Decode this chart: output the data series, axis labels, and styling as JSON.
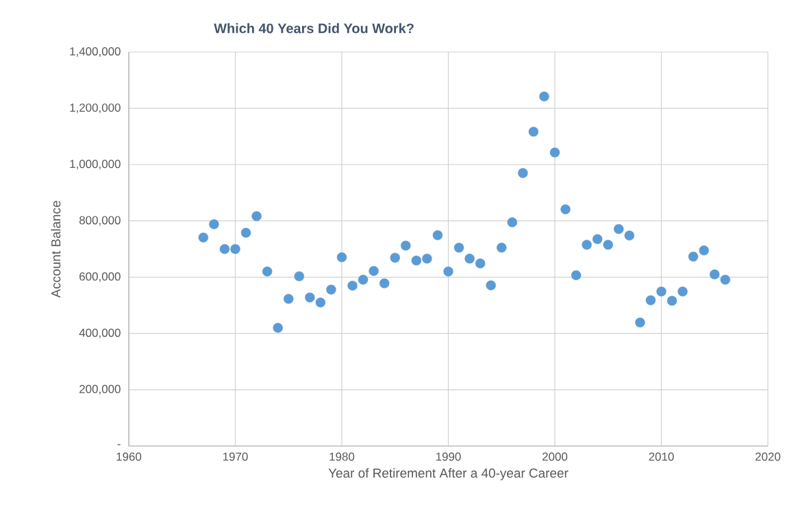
{
  "chart_data": {
    "type": "scatter",
    "title": "Which 40 Years Did You Work?",
    "xlabel": "Year of Retirement After a 40-year Career",
    "ylabel": "Account Balance",
    "x": [
      1967,
      1968,
      1969,
      1970,
      1971,
      1972,
      1973,
      1974,
      1975,
      1976,
      1977,
      1978,
      1979,
      1980,
      1981,
      1982,
      1983,
      1984,
      1985,
      1986,
      1987,
      1988,
      1989,
      1990,
      1991,
      1992,
      1993,
      1994,
      1995,
      1996,
      1997,
      1998,
      1999,
      2000,
      2001,
      2002,
      2003,
      2004,
      2005,
      2006,
      2007,
      2008,
      2009,
      2010,
      2011,
      2012,
      2013,
      2014,
      2015,
      2016
    ],
    "values": [
      741000,
      788000,
      700000,
      700000,
      758000,
      817000,
      620000,
      420000,
      523000,
      603000,
      528000,
      510000,
      556000,
      671000,
      570000,
      591000,
      622000,
      578000,
      669000,
      712000,
      659000,
      666000,
      749000,
      620000,
      705000,
      666000,
      649000,
      571000,
      705000,
      795000,
      970000,
      1117000,
      1242000,
      1043000,
      841000,
      607000,
      715000,
      735000,
      715000,
      771000,
      748000,
      439000,
      518000,
      549000,
      516000,
      549000,
      673000,
      695000,
      610000,
      591000
    ],
    "color": "#5b9bd5",
    "marker": "circle",
    "grid": true,
    "xlim": [
      1960,
      2020
    ],
    "xticks": [
      1960,
      1970,
      1980,
      1990,
      2000,
      2010,
      2020
    ],
    "ylim": [
      0,
      1400000
    ],
    "yticks": [
      {
        "value": 0,
        "label": "-"
      },
      {
        "value": 200000,
        "label": "200,000"
      },
      {
        "value": 400000,
        "label": "400,000"
      },
      {
        "value": 600000,
        "label": "600,000"
      },
      {
        "value": 800000,
        "label": "800,000"
      },
      {
        "value": 1000000,
        "label": "1,000,000"
      },
      {
        "value": 1200000,
        "label": "1,200,000"
      },
      {
        "value": 1400000,
        "label": "1,400,000"
      }
    ]
  }
}
